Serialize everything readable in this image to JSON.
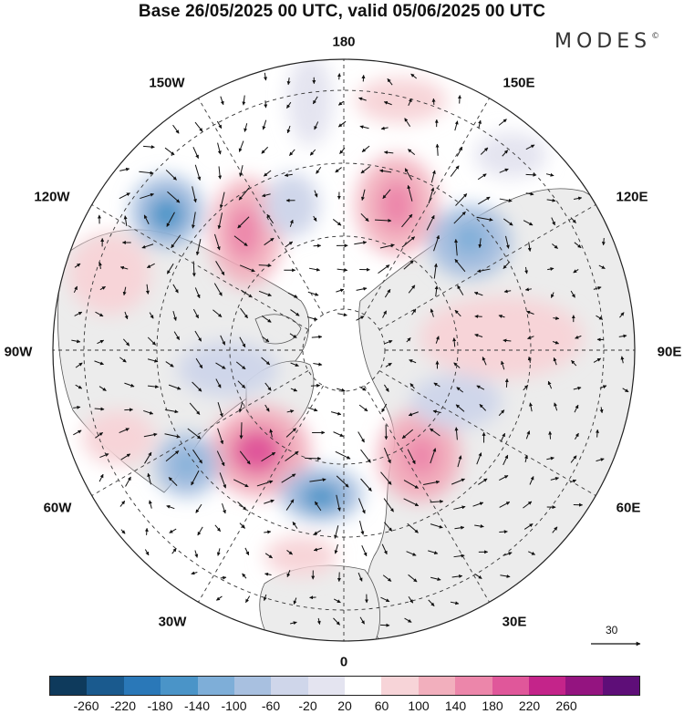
{
  "title": "Base 26/05/2025 00 UTC, valid 05/06/2025 00 UTC",
  "brand": "MODES",
  "brand_mark": "©",
  "longitude_labels": {
    "top": "180",
    "bottom": "0",
    "left": "90W",
    "right": "90E",
    "nw": "150W",
    "ne": "150E",
    "wnw": "120W",
    "ene": "120E",
    "wsw": "60W",
    "ese": "60E",
    "sw": "30W",
    "se": "30E"
  },
  "reference_vector": "30",
  "colorbar": {
    "colors": [
      "#0e3a5c",
      "#1a5a8e",
      "#2a78b8",
      "#4a94c8",
      "#7eaed8",
      "#a8c0e0",
      "#cfd6ea",
      "#e4e4f0",
      "#ffffff",
      "#f7d4d8",
      "#f2afbd",
      "#ec86aa",
      "#e0579a",
      "#c4248a",
      "#941480",
      "#5e0e78"
    ],
    "labels": [
      "-260",
      "-220",
      "-180",
      "-140",
      "-100",
      "-60",
      "-20",
      "20",
      "60",
      "100",
      "140",
      "180",
      "220",
      "260"
    ]
  },
  "colors": {
    "land": "#ececec",
    "ocean": "#ffffff",
    "grid": "#333333"
  }
}
